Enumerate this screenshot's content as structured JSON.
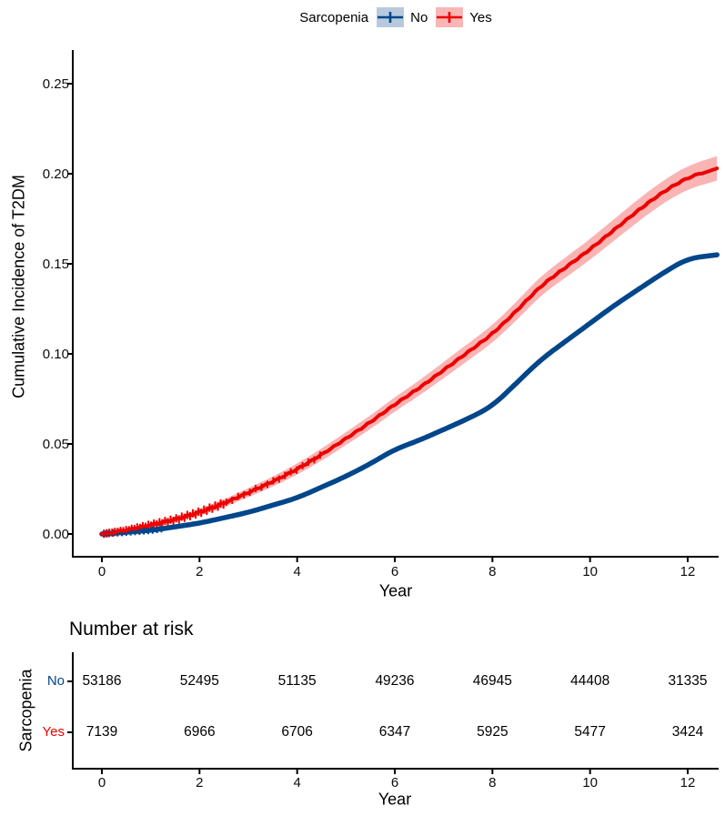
{
  "legend": {
    "title": "Sarcopenia",
    "items": [
      {
        "label": "No",
        "color": "#00468B",
        "fill": "#b7cadd"
      },
      {
        "label": "Yes",
        "color": "#EC0000",
        "fill": "#f9b6b6"
      }
    ]
  },
  "chart_data": {
    "type": "line",
    "title": "",
    "xlabel": "Year",
    "ylabel": "Cumulative Incidence of T2DM",
    "xlim": [
      0,
      12.6
    ],
    "ylim": [
      0,
      0.25
    ],
    "xticks": [
      0,
      2,
      4,
      6,
      8,
      10,
      12
    ],
    "yticks": [
      "0.00",
      "0.05",
      "0.10",
      "0.15",
      "0.20",
      "0.25"
    ],
    "grid": false,
    "legend_position": "top",
    "x": [
      0,
      0.5,
      1,
      1.5,
      2,
      2.5,
      3,
      3.5,
      4,
      4.5,
      5,
      5.5,
      6,
      6.5,
      7,
      7.5,
      8,
      8.5,
      9,
      9.5,
      10,
      10.5,
      11,
      11.5,
      12,
      12.6
    ],
    "series": [
      {
        "name": "No",
        "color": "#00468B",
        "values": [
          0,
          0.001,
          0.002,
          0.004,
          0.006,
          0.009,
          0.012,
          0.016,
          0.02,
          0.026,
          0.032,
          0.039,
          0.047,
          0.052,
          0.058,
          0.064,
          0.071,
          0.084,
          0.097,
          0.107,
          0.117,
          0.127,
          0.136,
          0.145,
          0.153,
          0.155
        ]
      },
      {
        "name": "Yes",
        "color": "#EC0000",
        "band_color": "#f9b4b4",
        "values": [
          0,
          0.002,
          0.005,
          0.008,
          0.012,
          0.017,
          0.023,
          0.029,
          0.036,
          0.044,
          0.053,
          0.062,
          0.072,
          0.081,
          0.091,
          0.101,
          0.111,
          0.124,
          0.138,
          0.148,
          0.158,
          0.169,
          0.18,
          0.19,
          0.198,
          0.203
        ],
        "ci_halfwidth": [
          0.0008,
          0.001,
          0.0013,
          0.0016,
          0.0019,
          0.0022,
          0.0025,
          0.0028,
          0.0031,
          0.0034,
          0.0036,
          0.0038,
          0.004,
          0.0042,
          0.0045,
          0.0047,
          0.0049,
          0.0052,
          0.0054,
          0.0056,
          0.0058,
          0.006,
          0.0062,
          0.0063,
          0.0065,
          0.0068
        ]
      }
    ]
  },
  "risk_table": {
    "title": "Number at risk",
    "ylabel": "Sarcopenia",
    "xlabel": "Year",
    "xticks": [
      0,
      2,
      4,
      6,
      8,
      10,
      12
    ],
    "rows": [
      {
        "label": "No",
        "color": "#00468B",
        "values": [
          53186,
          52495,
          51135,
          49236,
          46945,
          44408,
          31335
        ]
      },
      {
        "label": "Yes",
        "color": "#EC0000",
        "values": [
          7139,
          6966,
          6706,
          6347,
          5925,
          5477,
          3424
        ]
      }
    ]
  }
}
